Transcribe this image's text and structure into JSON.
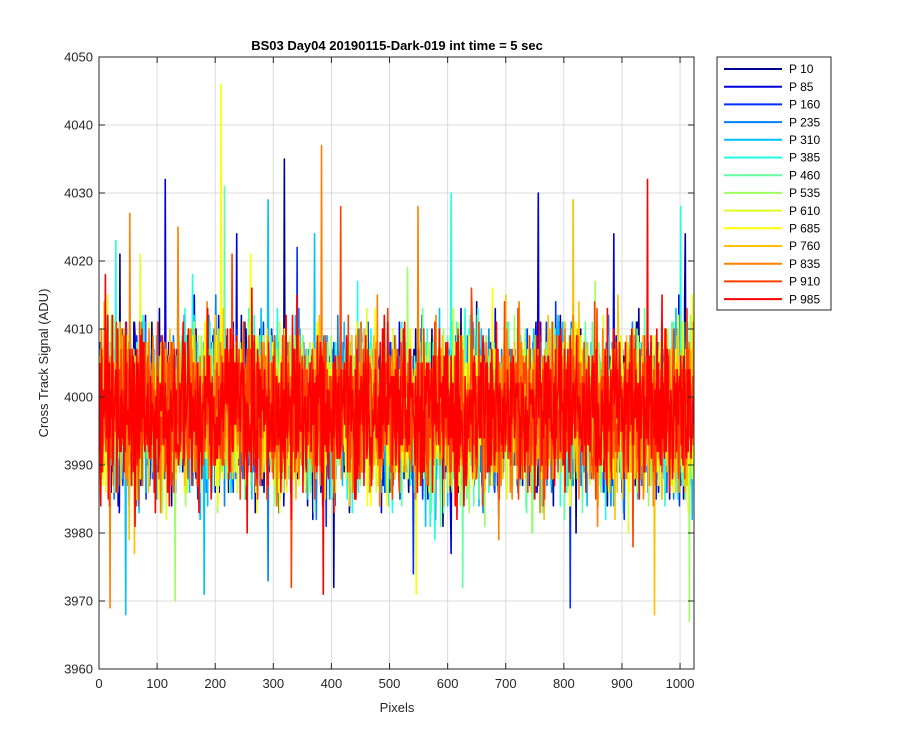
{
  "chart_data": {
    "type": "line",
    "title": "BS03 Day04 20190115-Dark-019 int time = 5 sec",
    "xlabel": "Pixels",
    "ylabel": "Cross Track Signal (ADU)",
    "xlim": [
      0,
      1024
    ],
    "ylim": [
      3960,
      4050
    ],
    "xticks": [
      0,
      100,
      200,
      300,
      400,
      500,
      600,
      700,
      800,
      900,
      1000
    ],
    "yticks": [
      3960,
      3970,
      3980,
      3990,
      4000,
      4010,
      4020,
      4030,
      4040,
      4050
    ],
    "grid": true,
    "legend_position": "outside-top-right",
    "series": [
      {
        "name": "P 10",
        "color": "#00008f",
        "mean": 3998,
        "spread": 5.5,
        "seed": 11,
        "spikes": [
          {
            "x": 35,
            "y": 4021
          },
          {
            "x": 318,
            "y": 4035
          },
          {
            "x": 403,
            "y": 3972
          },
          {
            "x": 820,
            "y": 3980
          },
          {
            "x": 1008,
            "y": 4024
          }
        ]
      },
      {
        "name": "P 85",
        "color": "#0000df",
        "mean": 3998,
        "spread": 5.5,
        "seed": 23,
        "spikes": [
          {
            "x": 113,
            "y": 4032
          },
          {
            "x": 236,
            "y": 4024
          },
          {
            "x": 755,
            "y": 4030
          },
          {
            "x": 885,
            "y": 4024
          },
          {
            "x": 605,
            "y": 3977
          }
        ]
      },
      {
        "name": "P 160",
        "color": "#0030ff",
        "mean": 3998,
        "spread": 5.5,
        "seed": 37,
        "spikes": [
          {
            "x": 340,
            "y": 4022
          },
          {
            "x": 785,
            "y": 4014
          },
          {
            "x": 540,
            "y": 3974
          },
          {
            "x": 810,
            "y": 3969
          }
        ]
      },
      {
        "name": "P 235",
        "color": "#0080ff",
        "mean": 3998,
        "spread": 5.5,
        "seed": 41,
        "spikes": [
          {
            "x": 290,
            "y": 3973
          },
          {
            "x": 200,
            "y": 4015
          },
          {
            "x": 660,
            "y": 3983
          }
        ]
      },
      {
        "name": "P 310",
        "color": "#00c0ff",
        "mean": 3998,
        "spread": 5.5,
        "seed": 53,
        "spikes": [
          {
            "x": 45,
            "y": 3968
          },
          {
            "x": 290,
            "y": 4029
          },
          {
            "x": 370,
            "y": 4024
          },
          {
            "x": 180,
            "y": 3971
          }
        ]
      },
      {
        "name": "P 385",
        "color": "#20ffdf",
        "mean": 3998,
        "spread": 5.5,
        "seed": 67,
        "spikes": [
          {
            "x": 605,
            "y": 4030
          },
          {
            "x": 28,
            "y": 4023
          },
          {
            "x": 160,
            "y": 4018
          },
          {
            "x": 1000,
            "y": 4028
          }
        ]
      },
      {
        "name": "P 460",
        "color": "#60ffa0",
        "mean": 3998,
        "spread": 5.5,
        "seed": 71,
        "spikes": [
          {
            "x": 215,
            "y": 4031
          },
          {
            "x": 625,
            "y": 3972
          },
          {
            "x": 745,
            "y": 3980
          }
        ]
      },
      {
        "name": "P 535",
        "color": "#9fff60",
        "mean": 3998,
        "spread": 5.5,
        "seed": 83,
        "spikes": [
          {
            "x": 130,
            "y": 3970
          },
          {
            "x": 530,
            "y": 4019
          },
          {
            "x": 1015,
            "y": 3967
          }
        ]
      },
      {
        "name": "P 610",
        "color": "#dfff20",
        "mean": 3998,
        "spread": 5.5,
        "seed": 97,
        "spikes": [
          {
            "x": 70,
            "y": 4021
          },
          {
            "x": 460,
            "y": 4013
          },
          {
            "x": 910,
            "y": 3980
          }
        ]
      },
      {
        "name": "P 685",
        "color": "#ffff00",
        "mean": 3998,
        "spread": 5.5,
        "seed": 101,
        "spikes": [
          {
            "x": 209,
            "y": 4046
          },
          {
            "x": 260,
            "y": 4021
          },
          {
            "x": 545,
            "y": 3971
          }
        ]
      },
      {
        "name": "P 760",
        "color": "#ffc000",
        "mean": 3998,
        "spread": 5.5,
        "seed": 113,
        "spikes": [
          {
            "x": 815,
            "y": 4029
          },
          {
            "x": 955,
            "y": 3968
          },
          {
            "x": 60,
            "y": 3977
          }
        ]
      },
      {
        "name": "P 835",
        "color": "#ff8000",
        "mean": 3998,
        "spread": 5.5,
        "seed": 127,
        "spikes": [
          {
            "x": 52,
            "y": 4027
          },
          {
            "x": 382,
            "y": 4037
          },
          {
            "x": 548,
            "y": 4028
          },
          {
            "x": 18,
            "y": 3969
          },
          {
            "x": 135,
            "y": 4025
          }
        ]
      },
      {
        "name": "P 910",
        "color": "#ff4000",
        "mean": 3998,
        "spread": 5.5,
        "seed": 131,
        "spikes": [
          {
            "x": 415,
            "y": 4028
          },
          {
            "x": 228,
            "y": 4021
          },
          {
            "x": 640,
            "y": 4016
          },
          {
            "x": 330,
            "y": 3972
          }
        ]
      },
      {
        "name": "P 985",
        "color": "#ff0000",
        "mean": 3998,
        "spread": 5.5,
        "seed": 139,
        "spikes": [
          {
            "x": 943,
            "y": 4032
          },
          {
            "x": 385,
            "y": 3971
          },
          {
            "x": 10,
            "y": 4018
          }
        ]
      }
    ]
  }
}
